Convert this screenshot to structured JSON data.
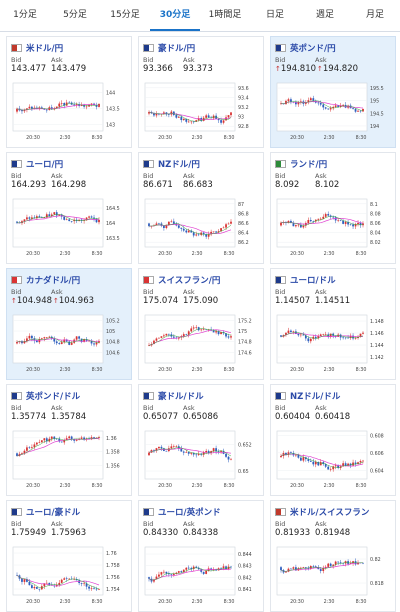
{
  "tabs": [
    "1分足",
    "5分足",
    "15分足",
    "30分足",
    "1時間足",
    "日足",
    "週足",
    "月足"
  ],
  "active_tab": "30分足",
  "labels": {
    "bid": "Bid",
    "ask": "Ask"
  },
  "colors": {
    "up": "#d93434",
    "down": "#2f5fbf",
    "ma_pink": "#e040d0",
    "ma_green": "#3aa640",
    "link": "#2b4aa8",
    "highlight": "#e4f0fb"
  },
  "cards": [
    {
      "name": "米ドル/円",
      "bid": "143.477",
      "ask": "143.479",
      "arrow": false,
      "highlight": false,
      "flags": [
        "#c0392b",
        "#2c4ea3"
      ],
      "xticks": [
        "20:30",
        "2:30",
        "8:30"
      ],
      "yticks": [
        "144",
        "143.5",
        "143"
      ],
      "ylim": [
        142.8,
        144.3
      ]
    },
    {
      "name": "豪ドル/円",
      "bid": "93.366",
      "ask": "93.373",
      "arrow": false,
      "highlight": false,
      "flags": [
        "#1e3a8a",
        "#1e3a8a"
      ],
      "xticks": [
        "20:30",
        "2:30",
        "8:30"
      ],
      "yticks": [
        "93.6",
        "93.4",
        "93.2",
        "93",
        "92.8"
      ],
      "ylim": [
        92.7,
        93.7
      ]
    },
    {
      "name": "英ポンド/円",
      "bid": "194.810",
      "ask": "194.820",
      "arrow": true,
      "highlight": true,
      "flags": [
        "#1e3a8a",
        "#c0392b"
      ],
      "xticks": [
        "20:30",
        "2:30",
        "8:30"
      ],
      "yticks": [
        "195.5",
        "195",
        "194.5",
        "194"
      ],
      "ylim": [
        193.8,
        195.7
      ]
    },
    {
      "name": "ユーロ/円",
      "bid": "164.293",
      "ask": "164.298",
      "arrow": false,
      "highlight": false,
      "flags": [
        "#1e3a8a",
        "#1e3a8a"
      ],
      "xticks": [
        "20:30",
        "2:30",
        "8:30"
      ],
      "yticks": [
        "164.5",
        "164",
        "163.5"
      ],
      "ylim": [
        163.2,
        164.8
      ]
    },
    {
      "name": "NZドル/円",
      "bid": "86.671",
      "ask": "86.683",
      "arrow": false,
      "highlight": false,
      "flags": [
        "#1e3a8a",
        "#c0392b"
      ],
      "xticks": [
        "20:30",
        "2:30",
        "8:30"
      ],
      "yticks": [
        "87",
        "86.8",
        "86.6",
        "86.4",
        "86.2"
      ],
      "ylim": [
        86.1,
        87.1
      ]
    },
    {
      "name": "ランド/円",
      "bid": "8.092",
      "ask": "8.102",
      "arrow": false,
      "highlight": false,
      "flags": [
        "#2e8b3a",
        "#d93434"
      ],
      "xticks": [
        "20:30",
        "2:30",
        "8:30"
      ],
      "yticks": [
        "8.1",
        "8.08",
        "8.06",
        "8.04",
        "8.02"
      ],
      "ylim": [
        8.01,
        8.11
      ]
    },
    {
      "name": "カナダドル/円",
      "bid": "104.948",
      "ask": "104.963",
      "arrow": true,
      "highlight": true,
      "flags": [
        "#d93434",
        "#d93434"
      ],
      "xticks": [
        "20:30",
        "2:30",
        "8:30"
      ],
      "yticks": [
        "105.2",
        "105",
        "104.8",
        "104.6"
      ],
      "ylim": [
        104.4,
        105.3
      ]
    },
    {
      "name": "スイスフラン/円",
      "bid": "175.074",
      "ask": "175.090",
      "arrow": false,
      "highlight": false,
      "flags": [
        "#d93434",
        "#d93434"
      ],
      "xticks": [
        "20:30",
        "2:30",
        "8:30"
      ],
      "yticks": [
        "175.2",
        "175",
        "174.8",
        "174.6"
      ],
      "ylim": [
        174.4,
        175.3
      ]
    },
    {
      "name": "ユーロ/ドル",
      "bid": "1.14507",
      "ask": "1.14511",
      "arrow": false,
      "highlight": false,
      "flags": [
        "#1e3a8a",
        "#c0392b"
      ],
      "xticks": [
        "20:30",
        "2:30",
        "8:30"
      ],
      "yticks": [
        "1.148",
        "1.146",
        "1.144",
        "1.142"
      ],
      "ylim": [
        1.141,
        1.149
      ]
    },
    {
      "name": "英ポンド/ドル",
      "bid": "1.35774",
      "ask": "1.35784",
      "arrow": false,
      "highlight": false,
      "flags": [
        "#1e3a8a",
        "#c0392b"
      ],
      "xticks": [
        "20:30",
        "2:30",
        "8:30"
      ],
      "yticks": [
        "1.36",
        "1.358",
        "1.356"
      ],
      "ylim": [
        1.354,
        1.361
      ]
    },
    {
      "name": "豪ドル/ドル",
      "bid": "0.65077",
      "ask": "0.65086",
      "arrow": false,
      "highlight": false,
      "flags": [
        "#1e3a8a",
        "#c0392b"
      ],
      "xticks": [
        "20:30",
        "2:30",
        "8:30"
      ],
      "yticks": [
        "0.652",
        "0.65"
      ],
      "ylim": [
        0.6494,
        0.653
      ]
    },
    {
      "name": "NZドル/ドル",
      "bid": "0.60404",
      "ask": "0.60418",
      "arrow": false,
      "highlight": false,
      "flags": [
        "#1e3a8a",
        "#c0392b"
      ],
      "xticks": [
        "20:30",
        "2:30",
        "8:30"
      ],
      "yticks": [
        "0.608",
        "0.606",
        "0.604"
      ],
      "ylim": [
        0.603,
        0.6085
      ]
    },
    {
      "name": "ユーロ/豪ドル",
      "bid": "1.75949",
      "ask": "1.75963",
      "arrow": false,
      "highlight": false,
      "flags": [
        "#1e3a8a",
        "#1e3a8a"
      ],
      "xticks": [
        "20:30",
        "2:30",
        "8:30"
      ],
      "yticks": [
        "1.76",
        "1.758",
        "1.756",
        "1.754"
      ],
      "ylim": [
        1.753,
        1.761
      ]
    },
    {
      "name": "ユーロ/英ポンド",
      "bid": "0.84330",
      "ask": "0.84338",
      "arrow": false,
      "highlight": false,
      "flags": [
        "#1e3a8a",
        "#1e3a8a"
      ],
      "xticks": [
        "20:30",
        "2:30",
        "8:30"
      ],
      "yticks": [
        "0.844",
        "0.843",
        "0.842",
        "0.841"
      ],
      "ylim": [
        0.8405,
        0.8446
      ]
    },
    {
      "name": "米ドル/スイスフラン",
      "bid": "0.81933",
      "ask": "0.81948",
      "arrow": false,
      "highlight": false,
      "flags": [
        "#c0392b",
        "#d93434"
      ],
      "xticks": [
        "20:30",
        "2:30",
        "8:30"
      ],
      "yticks": [
        "0.82",
        "0.818"
      ],
      "ylim": [
        0.817,
        0.821
      ]
    }
  ]
}
